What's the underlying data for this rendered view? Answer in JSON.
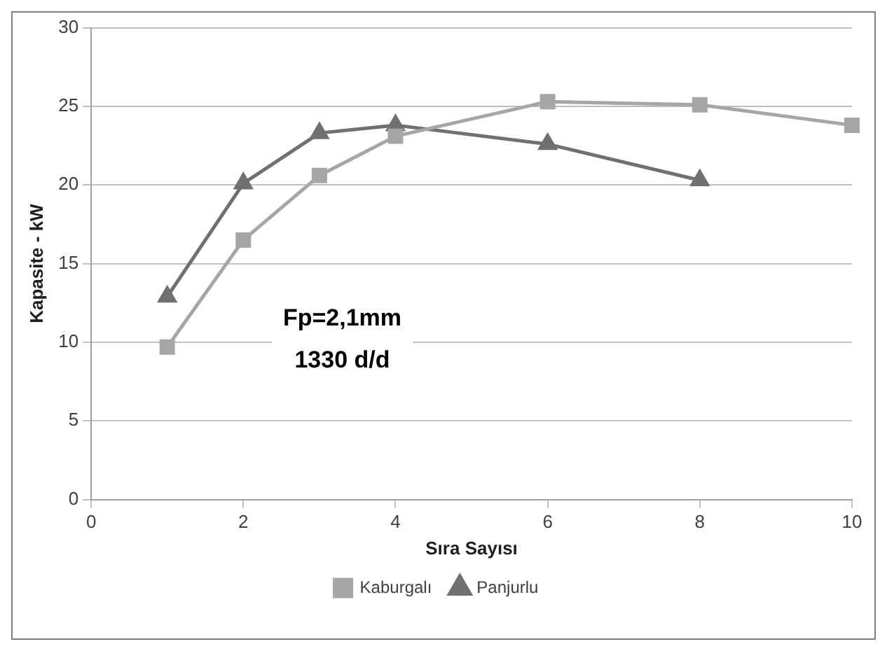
{
  "chart_data": {
    "type": "line",
    "xlabel": "Sıra Sayısı",
    "ylabel": "Kapasite - kW",
    "xlim": [
      0,
      10
    ],
    "xticks": [
      0,
      2,
      4,
      6,
      8,
      10
    ],
    "ylim": [
      0,
      30
    ],
    "yticks": [
      0,
      5,
      10,
      15,
      20,
      25,
      30
    ],
    "grid": "y",
    "legend": "bottom",
    "line_style": "solid",
    "series": [
      {
        "name": "Kaburgalı",
        "color": "#a6a6a6",
        "marker": "square",
        "x": [
          1,
          2,
          3,
          4,
          6,
          8,
          10
        ],
        "values": [
          9.7,
          16.5,
          20.6,
          23.1,
          25.3,
          25.1,
          23.8
        ]
      },
      {
        "name": "Panjurlu",
        "color": "#707070",
        "marker": "triangle",
        "x": [
          1,
          2,
          3,
          4,
          6,
          8
        ],
        "values": [
          12.9,
          20.1,
          23.3,
          23.8,
          22.6,
          20.3
        ]
      }
    ],
    "annotations": [
      "Fp=2,1mm",
      "1330 d/d"
    ]
  }
}
